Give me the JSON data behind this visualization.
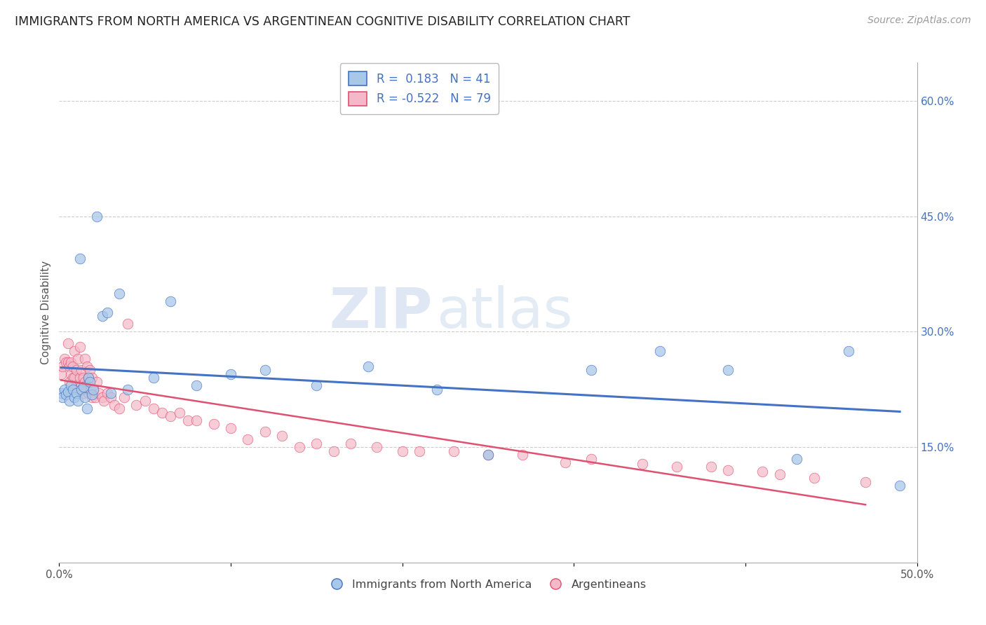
{
  "title": "IMMIGRANTS FROM NORTH AMERICA VS ARGENTINEAN COGNITIVE DISABILITY CORRELATION CHART",
  "source": "Source: ZipAtlas.com",
  "ylabel": "Cognitive Disability",
  "xlim": [
    0.0,
    0.5
  ],
  "ylim": [
    0.0,
    0.65
  ],
  "xticks": [
    0.0,
    0.1,
    0.2,
    0.3,
    0.4,
    0.5
  ],
  "xticklabels": [
    "0.0%",
    "",
    "",
    "",
    "",
    "50.0%"
  ],
  "yticks_right": [
    0.15,
    0.3,
    0.45,
    0.6
  ],
  "yticklabels_right": [
    "15.0%",
    "30.0%",
    "45.0%",
    "60.0%"
  ],
  "grid_color": "#cccccc",
  "background_color": "#ffffff",
  "watermark_text": "ZIP",
  "watermark_text2": "atlas",
  "series1_label": "Immigrants from North America",
  "series2_label": "Argentineans",
  "series1_R": "0.183",
  "series1_N": "41",
  "series2_R": "-0.522",
  "series2_N": "79",
  "series1_color": "#a8c8e8",
  "series2_color": "#f4b8c8",
  "trendline1_color": "#4472c4",
  "trendline2_color": "#e05070",
  "series1_x": [
    0.001,
    0.002,
    0.003,
    0.004,
    0.005,
    0.006,
    0.007,
    0.008,
    0.009,
    0.01,
    0.011,
    0.012,
    0.013,
    0.014,
    0.015,
    0.016,
    0.017,
    0.018,
    0.019,
    0.02,
    0.022,
    0.025,
    0.028,
    0.03,
    0.035,
    0.04,
    0.055,
    0.065,
    0.08,
    0.1,
    0.12,
    0.15,
    0.18,
    0.22,
    0.25,
    0.31,
    0.35,
    0.39,
    0.43,
    0.46,
    0.49
  ],
  "series1_y": [
    0.22,
    0.215,
    0.225,
    0.218,
    0.222,
    0.21,
    0.23,
    0.225,
    0.215,
    0.22,
    0.21,
    0.395,
    0.225,
    0.228,
    0.215,
    0.2,
    0.24,
    0.235,
    0.218,
    0.225,
    0.45,
    0.32,
    0.325,
    0.22,
    0.35,
    0.225,
    0.24,
    0.34,
    0.23,
    0.245,
    0.25,
    0.23,
    0.255,
    0.225,
    0.14,
    0.25,
    0.275,
    0.25,
    0.135,
    0.275,
    0.1
  ],
  "series2_x": [
    0.001,
    0.002,
    0.003,
    0.004,
    0.005,
    0.005,
    0.006,
    0.006,
    0.007,
    0.007,
    0.008,
    0.008,
    0.009,
    0.009,
    0.01,
    0.01,
    0.011,
    0.011,
    0.012,
    0.012,
    0.013,
    0.013,
    0.014,
    0.014,
    0.015,
    0.015,
    0.016,
    0.016,
    0.017,
    0.017,
    0.018,
    0.018,
    0.019,
    0.019,
    0.02,
    0.021,
    0.022,
    0.023,
    0.025,
    0.026,
    0.028,
    0.03,
    0.032,
    0.035,
    0.038,
    0.04,
    0.045,
    0.05,
    0.055,
    0.06,
    0.065,
    0.07,
    0.075,
    0.08,
    0.09,
    0.1,
    0.11,
    0.12,
    0.13,
    0.14,
    0.15,
    0.16,
    0.17,
    0.185,
    0.2,
    0.21,
    0.23,
    0.25,
    0.27,
    0.295,
    0.31,
    0.34,
    0.36,
    0.38,
    0.39,
    0.41,
    0.42,
    0.44,
    0.47
  ],
  "series2_y": [
    0.245,
    0.255,
    0.265,
    0.26,
    0.285,
    0.26,
    0.255,
    0.235,
    0.245,
    0.26,
    0.24,
    0.255,
    0.275,
    0.24,
    0.25,
    0.23,
    0.265,
    0.225,
    0.28,
    0.24,
    0.25,
    0.23,
    0.24,
    0.22,
    0.265,
    0.235,
    0.255,
    0.225,
    0.24,
    0.22,
    0.25,
    0.225,
    0.24,
    0.215,
    0.225,
    0.215,
    0.235,
    0.22,
    0.215,
    0.21,
    0.22,
    0.215,
    0.205,
    0.2,
    0.215,
    0.31,
    0.205,
    0.21,
    0.2,
    0.195,
    0.19,
    0.195,
    0.185,
    0.185,
    0.18,
    0.175,
    0.16,
    0.17,
    0.165,
    0.15,
    0.155,
    0.145,
    0.155,
    0.15,
    0.145,
    0.145,
    0.145,
    0.14,
    0.14,
    0.13,
    0.135,
    0.128,
    0.125,
    0.125,
    0.12,
    0.118,
    0.115,
    0.11,
    0.105
  ]
}
